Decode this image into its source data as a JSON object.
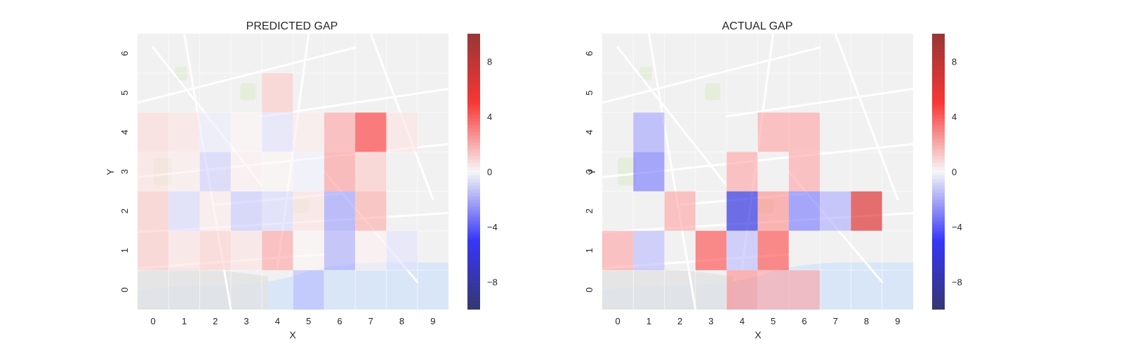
{
  "chart_data": [
    {
      "type": "heatmap",
      "title": "PREDICTED GAP",
      "xlabel": "X",
      "ylabel": "Y",
      "x_ticks": [
        "0",
        "1",
        "2",
        "3",
        "4",
        "5",
        "6",
        "7",
        "8",
        "9"
      ],
      "y_ticks": [
        "0",
        "1",
        "2",
        "3",
        "4",
        "5",
        "6"
      ],
      "value_range": [
        -10,
        10
      ],
      "colorbar_ticks": [
        -8,
        -4,
        0,
        4,
        8
      ],
      "colorbar_tick_labels": [
        "−8",
        "−4",
        "0",
        "4",
        "8"
      ],
      "colormap": "seismic",
      "background": "map",
      "cells": [
        {
          "x": 0,
          "y": 1,
          "v": 1.2
        },
        {
          "x": 1,
          "y": 1,
          "v": 0.6
        },
        {
          "x": 2,
          "y": 1,
          "v": 1.0
        },
        {
          "x": 3,
          "y": 1,
          "v": 0.6
        },
        {
          "x": 4,
          "y": 1,
          "v": 2.0
        },
        {
          "x": 5,
          "y": 1,
          "v": 0.2
        },
        {
          "x": 6,
          "y": 1,
          "v": -1.8
        },
        {
          "x": 7,
          "y": 1,
          "v": 0.3
        },
        {
          "x": 8,
          "y": 1,
          "v": -0.6
        },
        {
          "x": 0,
          "y": 2,
          "v": 1.2
        },
        {
          "x": 1,
          "y": 2,
          "v": -0.8
        },
        {
          "x": 2,
          "y": 2,
          "v": 0.4
        },
        {
          "x": 3,
          "y": 2,
          "v": -1.2
        },
        {
          "x": 4,
          "y": 2,
          "v": -0.8
        },
        {
          "x": 5,
          "y": 2,
          "v": 0.6
        },
        {
          "x": 6,
          "y": 2,
          "v": -2.2
        },
        {
          "x": 7,
          "y": 2,
          "v": 1.8
        },
        {
          "x": 0,
          "y": 3,
          "v": 0.6
        },
        {
          "x": 1,
          "y": 3,
          "v": 0.4
        },
        {
          "x": 2,
          "y": 3,
          "v": -1.0
        },
        {
          "x": 3,
          "y": 3,
          "v": 0.3
        },
        {
          "x": 4,
          "y": 3,
          "v": 0.2
        },
        {
          "x": 5,
          "y": 3,
          "v": -0.3
        },
        {
          "x": 6,
          "y": 3,
          "v": 2.2
        },
        {
          "x": 7,
          "y": 3,
          "v": 1.2
        },
        {
          "x": 0,
          "y": 4,
          "v": 0.8
        },
        {
          "x": 1,
          "y": 4,
          "v": 0.6
        },
        {
          "x": 2,
          "y": 4,
          "v": -0.4
        },
        {
          "x": 3,
          "y": 4,
          "v": 0.2
        },
        {
          "x": 4,
          "y": 4,
          "v": -0.6
        },
        {
          "x": 5,
          "y": 4,
          "v": 0.4
        },
        {
          "x": 6,
          "y": 4,
          "v": 2.0
        },
        {
          "x": 7,
          "y": 4,
          "v": 4.5
        },
        {
          "x": 8,
          "y": 4,
          "v": 0.6
        },
        {
          "x": 4,
          "y": 5,
          "v": 1.2
        },
        {
          "x": 5,
          "y": 0,
          "v": -1.5
        }
      ]
    },
    {
      "type": "heatmap",
      "title": "ACTUAL GAP",
      "xlabel": "X",
      "ylabel": "Y",
      "x_ticks": [
        "0",
        "1",
        "2",
        "3",
        "4",
        "5",
        "6",
        "7",
        "8",
        "9"
      ],
      "y_ticks": [
        "0",
        "1",
        "2",
        "3",
        "4",
        "5",
        "6"
      ],
      "value_range": [
        -10,
        10
      ],
      "colorbar_ticks": [
        -8,
        -4,
        0,
        4,
        8
      ],
      "colorbar_tick_labels": [
        "−8",
        "−4",
        "0",
        "4",
        "8"
      ],
      "colormap": "seismic",
      "background": "map",
      "cells": [
        {
          "x": 1,
          "y": 4,
          "v": -2.0
        },
        {
          "x": 1,
          "y": 3,
          "v": -3.0
        },
        {
          "x": 1,
          "y": 1,
          "v": -1.5
        },
        {
          "x": 0,
          "y": 1,
          "v": 2.0
        },
        {
          "x": 2,
          "y": 2,
          "v": 2.0
        },
        {
          "x": 3,
          "y": 1,
          "v": 4.0
        },
        {
          "x": 4,
          "y": 3,
          "v": 2.0
        },
        {
          "x": 4,
          "y": 2,
          "v": -6.0
        },
        {
          "x": 4,
          "y": 1,
          "v": -1.5
        },
        {
          "x": 4,
          "y": 0,
          "v": 2.5
        },
        {
          "x": 5,
          "y": 4,
          "v": 2.0
        },
        {
          "x": 5,
          "y": 2,
          "v": 2.5
        },
        {
          "x": 5,
          "y": 1,
          "v": 4.0
        },
        {
          "x": 5,
          "y": 0,
          "v": 2.0
        },
        {
          "x": 6,
          "y": 4,
          "v": 2.0
        },
        {
          "x": 6,
          "y": 3,
          "v": 2.0
        },
        {
          "x": 6,
          "y": 2,
          "v": -3.0
        },
        {
          "x": 6,
          "y": 0,
          "v": 2.0
        },
        {
          "x": 7,
          "y": 2,
          "v": -1.8
        },
        {
          "x": 8,
          "y": 2,
          "v": 6.5
        }
      ]
    }
  ]
}
